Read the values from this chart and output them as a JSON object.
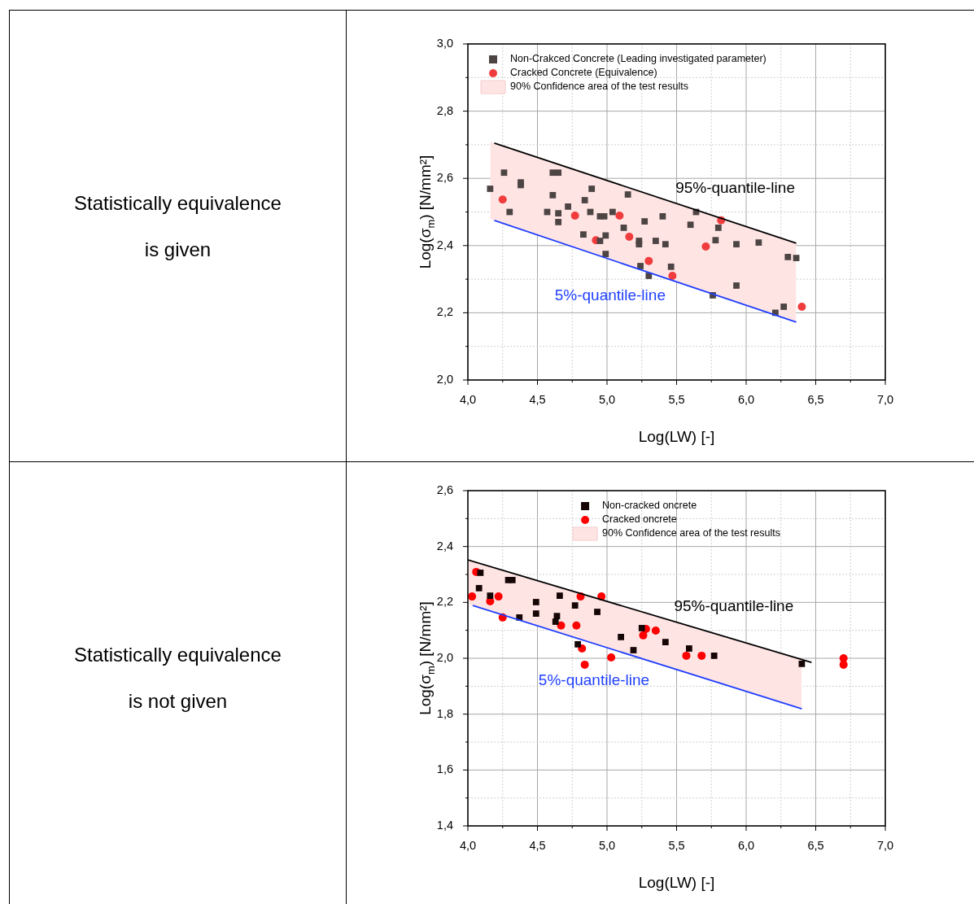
{
  "chart_data": [
    {
      "type": "scatter",
      "xlabel": "Log(LW) [-]",
      "ylabel": "Log(σ$_{m}$) [N/mm²]",
      "annotations": [
        "Statistically equivalence",
        "is given"
      ],
      "legend": "top left",
      "grid": true,
      "xlim": [
        4,
        7
      ],
      "xticks": [
        {
          "value": 4,
          "label": "4,0"
        },
        {
          "value": 4.25,
          "label": null
        },
        {
          "value": 4.5,
          "label": "4,5"
        },
        {
          "value": 4.75,
          "label": null
        },
        {
          "value": 5,
          "label": "5,0"
        },
        {
          "value": 5.25,
          "label": null
        },
        {
          "value": 5.5,
          "label": "5,5"
        },
        {
          "value": 5.75,
          "label": null
        },
        {
          "value": 6,
          "label": "6,0"
        },
        {
          "value": 6.25,
          "label": null
        },
        {
          "value": 6.5,
          "label": "6,5"
        },
        {
          "value": 6.75,
          "label": null
        },
        {
          "value": 7,
          "label": "7,0"
        }
      ],
      "ylim": [
        2,
        3
      ],
      "yticks": [
        {
          "value": 2,
          "label": "2,0"
        },
        {
          "value": 2.1,
          "label": null
        },
        {
          "value": 2.2,
          "label": "2,2"
        },
        {
          "value": 2.3,
          "label": null
        },
        {
          "value": 2.4,
          "label": "2,4"
        },
        {
          "value": 2.5,
          "label": null
        },
        {
          "value": 2.6,
          "label": "2,6"
        },
        {
          "value": 2.7,
          "label": null
        },
        {
          "value": 2.8,
          "label": "2,8"
        },
        {
          "value": 2.9,
          "label": null
        },
        {
          "value": 3,
          "label": "3,0"
        }
      ],
      "series": [
        {
          "type": "scatter",
          "name": "Non-Crakced Concrete (Leading investigated parameter)",
          "color": "#4d4444",
          "marker": "square",
          "x": [
            4.16,
            4.26,
            4.3,
            4.38,
            4.38,
            4.57,
            4.61,
            4.61,
            4.65,
            4.65,
            4.65,
            4.72,
            4.83,
            4.84,
            4.89,
            4.88,
            4.95,
            4.98,
            4.99,
            4.95,
            4.99,
            5.04,
            5.12,
            5.15,
            5.23,
            5.23,
            5.27,
            5.24,
            5.3,
            5.35,
            5.4,
            5.42,
            5.46,
            5.6,
            5.64,
            5.76,
            5.78,
            5.8,
            5.93,
            5.93,
            6.09,
            6.21,
            6.27,
            6.3,
            6.36
          ],
          "values": [
            2.569,
            2.617,
            2.5,
            2.588,
            2.58,
            2.5,
            2.55,
            2.617,
            2.617,
            2.496,
            2.47,
            2.516,
            2.433,
            2.535,
            2.569,
            2.5,
            2.487,
            2.487,
            2.43,
            2.414,
            2.375,
            2.5,
            2.453,
            2.552,
            2.414,
            2.404,
            2.472,
            2.339,
            2.31,
            2.414,
            2.487,
            2.404,
            2.337,
            2.462,
            2.5,
            2.252,
            2.416,
            2.453,
            2.404,
            2.281,
            2.409,
            2.2,
            2.218,
            2.366,
            2.363
          ]
        },
        {
          "type": "scatter",
          "name": "Cracked Concrete (Equivalence)",
          "color": "#f03c3c",
          "marker": "circle",
          "x": [
            4.25,
            4.77,
            4.92,
            5.09,
            5.16,
            5.3,
            5.47,
            5.71,
            5.82,
            6.4
          ],
          "values": [
            2.537,
            2.489,
            2.416,
            2.489,
            2.426,
            2.354,
            2.31,
            2.397,
            2.475,
            2.218
          ]
        },
        {
          "type": "area",
          "name": "90% Confidence area of the test results",
          "color": "#ffe4e4",
          "x": [
            4.16,
            6.36
          ],
          "values": [
            null,
            null
          ],
          "upper": [
            2.709,
            2.407
          ],
          "lower": [
            2.479,
            2.172
          ]
        },
        {
          "type": "line",
          "name": "95%-quantile-line",
          "color": "#000000",
          "x": [
            4.19,
            6.36
          ],
          "values": [
            2.705,
            2.407
          ]
        },
        {
          "type": "line",
          "name": "5%-quantile-line",
          "color": "#1f3fff",
          "x": [
            4.19,
            6.36
          ],
          "values": [
            2.475,
            2.172
          ]
        }
      ]
    },
    {
      "type": "scatter",
      "xlabel": "Log(LW) [-]",
      "ylabel": "Log(σ$_{m}$) [N/mm²]",
      "annotations": [
        "Statistically equivalence",
        "is not given"
      ],
      "legend": "top",
      "grid": true,
      "xlim": [
        4,
        7
      ],
      "xticks": [
        {
          "value": 4,
          "label": "4,0"
        },
        {
          "value": 4.25,
          "label": null
        },
        {
          "value": 4.5,
          "label": "4,5"
        },
        {
          "value": 4.75,
          "label": null
        },
        {
          "value": 5,
          "label": "5,0"
        },
        {
          "value": 5.25,
          "label": null
        },
        {
          "value": 5.5,
          "label": "5,5"
        },
        {
          "value": 5.75,
          "label": null
        },
        {
          "value": 6,
          "label": "6,0"
        },
        {
          "value": 6.25,
          "label": null
        },
        {
          "value": 6.5,
          "label": "6,5"
        },
        {
          "value": 6.75,
          "label": null
        },
        {
          "value": 7,
          "label": "7,0"
        }
      ],
      "ylim": [
        1.4,
        2.6
      ],
      "yticks": [
        {
          "value": 1.4,
          "label": "1,4"
        },
        {
          "value": 1.5,
          "label": null
        },
        {
          "value": 1.6,
          "label": "1,6"
        },
        {
          "value": 1.7,
          "label": null
        },
        {
          "value": 1.8,
          "label": "1,8"
        },
        {
          "value": 1.9,
          "label": null
        },
        {
          "value": 2,
          "label": "2,0"
        },
        {
          "value": 2.1,
          "label": null
        },
        {
          "value": 2.2,
          "label": "2,2"
        },
        {
          "value": 2.3,
          "label": null
        },
        {
          "value": 2.4,
          "label": "2,4"
        },
        {
          "value": 2.5,
          "label": null
        },
        {
          "value": 2.6,
          "label": "2,6"
        }
      ],
      "series": [
        {
          "type": "scatter",
          "name": "Non-cracked oncrete",
          "color": "#150505",
          "marker": "square",
          "x": [
            4.09,
            4.08,
            4.16,
            4.29,
            4.32,
            4.49,
            4.49,
            4.37,
            4.66,
            4.64,
            4.63,
            4.77,
            4.93,
            4.79,
            5.1,
            5.19,
            5.25,
            5.42,
            5.59,
            5.77,
            6.4
          ],
          "values": [
            2.306,
            2.251,
            2.224,
            2.28,
            2.28,
            2.201,
            2.16,
            2.146,
            2.224,
            2.151,
            2.131,
            2.189,
            2.166,
            2.05,
            2.076,
            2.029,
            2.108,
            2.058,
            2.035,
            2.009,
            1.98
          ]
        },
        {
          "type": "scatter",
          "name": "Cracked oncrete",
          "color": "#ff0000",
          "marker": "circle",
          "x": [
            4.06,
            4.03,
            4.16,
            4.22,
            4.25,
            4.81,
            4.96,
            4.67,
            4.78,
            4.82,
            4.84,
            5.03,
            5.26,
            5.28,
            5.35,
            5.57,
            5.68,
            6.7,
            6.7
          ],
          "values": [
            2.309,
            2.221,
            2.204,
            2.221,
            2.146,
            2.221,
            2.221,
            2.117,
            2.117,
            2.035,
            1.977,
            2.003,
            2.082,
            2.105,
            2.099,
            2.009,
            2.009,
            2.0,
            1.977
          ]
        },
        {
          "type": "area",
          "name": "90% Confidence area of the test results",
          "color": "#ffe4e4",
          "x": [
            4.0,
            6.4
          ],
          "values": [
            null,
            null
          ],
          "upper": [
            2.352,
            1.996
          ],
          "lower": [
            2.194,
            1.819
          ]
        },
        {
          "type": "line",
          "name": "95%-quantile-line",
          "color": "#000000",
          "x": [
            4.0,
            6.47
          ],
          "values": [
            2.352,
            1.985
          ]
        },
        {
          "type": "line",
          "name": "5%-quantile-line",
          "color": "#1f3fff",
          "x": [
            4.035,
            6.4
          ],
          "values": [
            2.189,
            1.819
          ]
        }
      ]
    }
  ]
}
